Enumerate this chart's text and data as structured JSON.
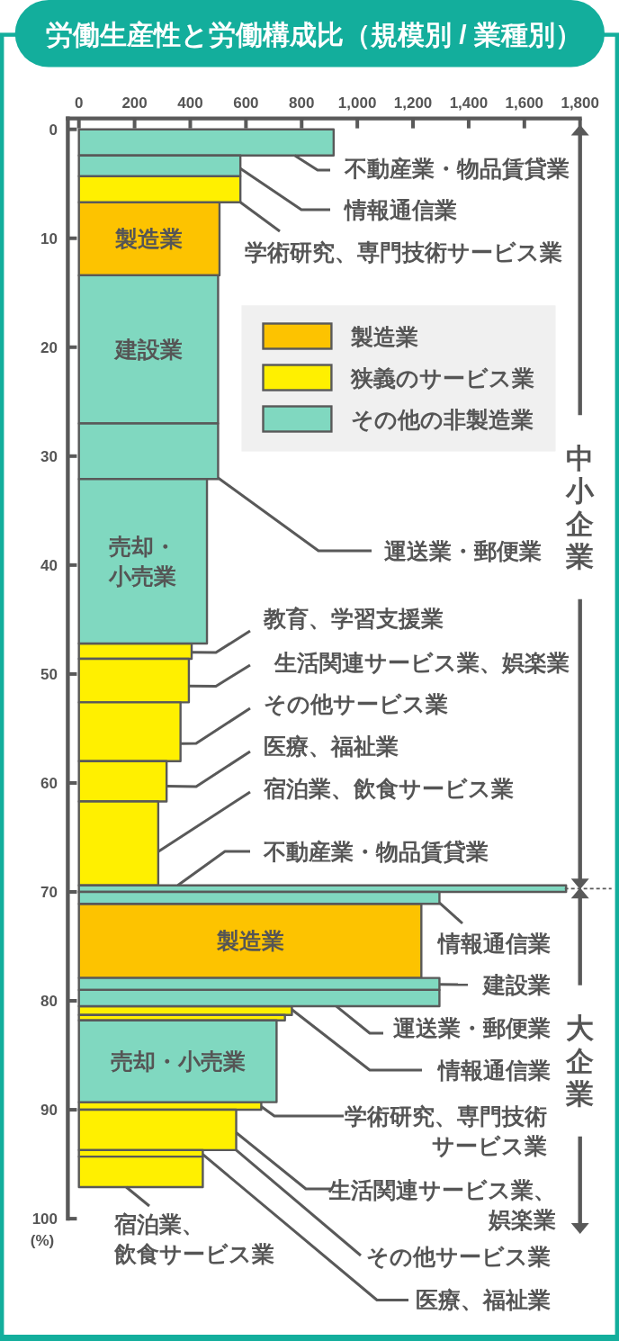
{
  "chart_data": {
    "type": "histogram",
    "orientation": "horizontal",
    "title": "労働生産性と労働構成比（規模別 / 業種別）",
    "ylabel": "(%)",
    "bins": [
      0,
      2.4,
      4.3,
      6.7,
      13.4,
      27.0,
      32.1,
      47.2,
      48.6,
      52.6,
      58.0,
      61.7,
      69.4,
      70.0,
      71.1,
      77.9,
      79.0,
      80.5,
      81.3,
      81.8,
      89.3,
      90.0,
      93.7,
      94.3,
      97.1
    ],
    "series": [
      {
        "name": "製造業",
        "color": "#fdc300",
        "values": [
          null,
          null,
          null,
          505,
          null,
          null,
          null,
          null,
          null,
          null,
          null,
          null,
          null,
          null,
          1230,
          null,
          null,
          null,
          null,
          null,
          null,
          null,
          null,
          null
        ]
      },
      {
        "name": "狭義のサービス業",
        "color": "#fff000",
        "values": [
          null,
          null,
          580,
          null,
          null,
          null,
          null,
          405,
          395,
          365,
          315,
          285,
          null,
          null,
          null,
          null,
          null,
          765,
          740,
          null,
          655,
          565,
          445,
          445
        ]
      },
      {
        "name": "その他の非製造業",
        "color": "#80d8c0",
        "values": [
          915,
          580,
          null,
          null,
          500,
          500,
          460,
          null,
          null,
          null,
          null,
          null,
          1750,
          1295,
          null,
          1295,
          1295,
          null,
          null,
          710,
          null,
          null,
          null,
          null
        ]
      }
    ],
    "xlim": [
      0,
      1800
    ],
    "xticks": [
      0,
      200,
      400,
      600,
      800,
      {
        "value": 1000,
        "label": "1,000"
      },
      {
        "value": 1200,
        "label": "1,200"
      },
      {
        "value": 1400,
        "label": "1,400"
      },
      {
        "value": 1600,
        "label": "1,600"
      },
      {
        "value": 1800,
        "label": "1,800"
      }
    ],
    "ylim": [
      100,
      -1
    ],
    "yticks": [
      0,
      10,
      20,
      30,
      40,
      50,
      60,
      70,
      80,
      90,
      100
    ],
    "legend": "top right",
    "annotations": [
      {
        "text": "不動産業・物品賃貸業",
        "x": 775,
        "y": 2.4
      },
      {
        "text": "情報通信業",
        "x": 580,
        "y": 3.6
      },
      {
        "text": "学術研究、専門技術サービス業",
        "x": 580,
        "y": 6.7
      },
      "製造業",
      "建設業",
      {
        "text": "運送業・郵便業",
        "x": 500,
        "y": 32.0
      },
      "売却・小売業",
      {
        "text": "教育、学習支援業",
        "x": 405,
        "y": 48.0
      },
      {
        "text": "生活関連サービス業、娯楽業",
        "x": 395,
        "y": 51.1
      },
      {
        "text": "その他サービス業",
        "x": 365,
        "y": 56.4
      },
      {
        "text": "医療、福祉業",
        "x": 315,
        "y": 60.3
      },
      {
        "text": "宿泊業、飲食サービス業",
        "x": 285,
        "y": 66.3
      },
      {
        "text": "不動産業・物品賃貸業",
        "x": 355,
        "y": 69.4
      },
      {
        "text": "情報通信業",
        "x": 1295,
        "y": 71.0
      },
      "製造業",
      {
        "text": "建設業",
        "x": 1295,
        "y": 78.5
      },
      {
        "text": "運送業・郵便業",
        "x": 925,
        "y": 80.5
      },
      {
        "text": "情報通信業",
        "x": 765,
        "y": 80.8
      },
      "売却・小売業",
      {
        "text": "学術研究、専門技術サービス業",
        "x": 655,
        "y": 89.7
      },
      {
        "text": "生活関連サービス業、娯楽業",
        "x": 565,
        "y": 92.1
      },
      {
        "text": "その他サービス業",
        "x": 565,
        "y": 93.7
      },
      {
        "text": "医療、福祉業",
        "x": 445,
        "y": 94.1
      },
      {
        "text": "宿泊業、飲食サービス業",
        "x": 170,
        "y": 97.1
      },
      "中小企業",
      "大企業"
    ]
  }
}
